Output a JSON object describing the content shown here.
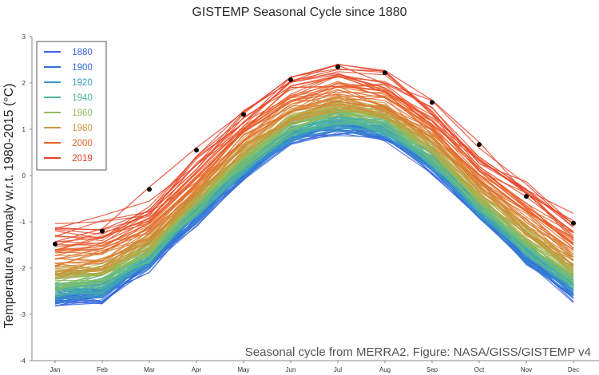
{
  "chart_data": {
    "type": "line",
    "title": "GISTEMP Seasonal Cycle since 1880",
    "ylabel": "Temperature Anomaly w.r.t. 1980-2015 (°C)",
    "xlabel": "",
    "caption": "Seasonal cycle from MERRA2. Figure: NASA/GISS/GISTEMP v4",
    "categories": [
      "Jan",
      "Feb",
      "Mar",
      "Apr",
      "May",
      "Jun",
      "Jul",
      "Aug",
      "Sep",
      "Oct",
      "Nov",
      "Dec"
    ],
    "ylim": [
      -4,
      3
    ],
    "yticks": [
      "3",
      "2",
      "1",
      "0",
      "-1",
      "-2",
      "-3",
      "-4"
    ],
    "grid": false,
    "legend_position": "top-left",
    "legend": [
      {
        "label": "1880",
        "color": "#3e64e0"
      },
      {
        "label": "1900",
        "color": "#2f6fd6"
      },
      {
        "label": "1920",
        "color": "#3a98c8"
      },
      {
        "label": "1940",
        "color": "#4cb89c"
      },
      {
        "label": "1960",
        "color": "#8fbe5a"
      },
      {
        "label": "1980",
        "color": "#c99a3c"
      },
      {
        "label": "2000",
        "color": "#e8662a"
      },
      {
        "label": "2019",
        "color": "#e8402a"
      }
    ],
    "base_cycle": [
      -2.75,
      -2.65,
      -1.95,
      -0.95,
      0.0,
      0.75,
      1.0,
      0.85,
      0.15,
      -0.85,
      -1.85,
      -2.6
    ],
    "year_range": [
      1880,
      2019
    ],
    "highlight_2019": {
      "label": "2019",
      "values": [
        -1.48,
        -1.2,
        -0.3,
        0.55,
        1.32,
        2.07,
        2.35,
        2.22,
        1.58,
        0.67,
        -0.45,
        -1.03
      ]
    }
  }
}
